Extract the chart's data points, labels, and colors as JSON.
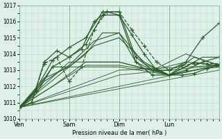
{
  "title": "",
  "xlabel": "Pression niveau de la mer( hPa )",
  "ylabel": "",
  "bg_color": "#dff0e8",
  "grid_color": "#b0d8c8",
  "line_color": "#2d5a2d",
  "ylim": [
    1010,
    1017
  ],
  "yticks": [
    1010,
    1011,
    1012,
    1013,
    1014,
    1015,
    1016,
    1017
  ],
  "xtick_labels": [
    "Ven",
    "Sam",
    "Dim",
    "Lun"
  ],
  "xtick_positions": [
    0,
    24,
    48,
    72
  ],
  "total_hours": 96,
  "figsize": [
    3.2,
    2.0
  ],
  "dpi": 100,
  "series": [
    {
      "x": [
        0,
        6,
        12,
        18,
        24,
        30,
        36,
        42,
        48,
        54,
        60,
        66,
        72,
        78,
        84,
        90,
        96
      ],
      "y": [
        1010.7,
        1011.0,
        1013.4,
        1013.8,
        1012.3,
        1013.2,
        1015.5,
        1016.6,
        1016.6,
        1015.5,
        1014.5,
        1013.5,
        1013.0,
        1013.3,
        1013.4,
        1013.4,
        1013.4
      ],
      "style": "--",
      "marker": "+",
      "lw": 0.9,
      "ms": 4
    },
    {
      "x": [
        0,
        6,
        12,
        18,
        24,
        30,
        36,
        42,
        48,
        54,
        60,
        66,
        72,
        78,
        84,
        90,
        96
      ],
      "y": [
        1010.7,
        1011.0,
        1013.5,
        1014.2,
        1013.8,
        1014.3,
        1016.0,
        1016.6,
        1016.4,
        1015.2,
        1014.0,
        1013.0,
        1012.7,
        1012.7,
        1012.8,
        1013.1,
        1013.2
      ],
      "style": "-",
      "marker": "+",
      "lw": 0.9,
      "ms": 4
    },
    {
      "x": [
        0,
        8,
        16,
        24,
        32,
        40,
        48,
        56,
        64,
        72,
        80,
        88,
        96
      ],
      "y": [
        1010.7,
        1011.5,
        1013.2,
        1013.2,
        1014.0,
        1015.3,
        1015.3,
        1013.5,
        1013.0,
        1012.7,
        1013.2,
        1013.8,
        1013.8
      ],
      "style": "-",
      "marker": null,
      "lw": 0.8,
      "ms": 0
    },
    {
      "x": [
        0,
        8,
        16,
        24,
        32,
        40,
        48,
        56,
        64,
        72,
        80,
        88,
        96
      ],
      "y": [
        1010.7,
        1011.7,
        1013.2,
        1013.8,
        1014.6,
        1016.4,
        1016.4,
        1013.5,
        1012.7,
        1012.7,
        1013.0,
        1013.5,
        1013.8
      ],
      "style": "-",
      "marker": "+",
      "lw": 0.9,
      "ms": 4
    },
    {
      "x": [
        0,
        8,
        16,
        24,
        32,
        40,
        48,
        56,
        64,
        72,
        80,
        88,
        96
      ],
      "y": [
        1010.7,
        1011.8,
        1013.6,
        1014.4,
        1015.0,
        1016.6,
        1016.6,
        1013.8,
        1013.0,
        1013.0,
        1013.5,
        1015.0,
        1015.9
      ],
      "style": "-",
      "marker": "+",
      "lw": 0.9,
      "ms": 4
    },
    {
      "x": [
        0,
        12,
        24,
        36,
        48,
        60,
        72,
        84,
        96
      ],
      "y": [
        1010.7,
        1012.5,
        1013.2,
        1014.5,
        1015.0,
        1013.5,
        1012.7,
        1013.5,
        1013.2
      ],
      "style": "-",
      "marker": null,
      "lw": 0.8,
      "ms": 0
    },
    {
      "x": [
        0,
        12,
        24,
        36,
        48,
        60,
        72,
        84,
        96
      ],
      "y": [
        1010.7,
        1012.3,
        1013.3,
        1014.8,
        1015.3,
        1013.4,
        1012.7,
        1013.8,
        1013.3
      ],
      "style": "-",
      "marker": null,
      "lw": 0.8,
      "ms": 0
    },
    {
      "x": [
        0,
        16,
        32,
        48,
        64,
        80,
        96
      ],
      "y": [
        1010.7,
        1012.0,
        1013.3,
        1013.3,
        1013.0,
        1013.5,
        1013.3
      ],
      "style": "-",
      "marker": null,
      "lw": 0.7,
      "ms": 0
    },
    {
      "x": [
        0,
        16,
        32,
        48,
        64,
        80,
        96
      ],
      "y": [
        1010.7,
        1012.0,
        1013.5,
        1013.5,
        1013.0,
        1014.0,
        1013.3
      ],
      "style": "-",
      "marker": null,
      "lw": 0.7,
      "ms": 0
    },
    {
      "x": [
        0,
        24,
        48,
        72,
        96
      ],
      "y": [
        1010.7,
        1013.2,
        1013.2,
        1012.7,
        1013.3
      ],
      "style": "-",
      "marker": null,
      "lw": 0.7,
      "ms": 0
    },
    {
      "x": [
        0,
        24,
        48,
        72,
        96
      ],
      "y": [
        1010.7,
        1013.5,
        1013.5,
        1012.7,
        1013.3
      ],
      "style": "-",
      "marker": null,
      "lw": 0.7,
      "ms": 0
    },
    {
      "x": [
        0,
        48,
        96
      ],
      "y": [
        1010.7,
        1013.0,
        1013.3
      ],
      "style": "-",
      "marker": null,
      "lw": 0.6,
      "ms": 0
    },
    {
      "x": [
        0,
        48,
        96
      ],
      "y": [
        1010.7,
        1012.7,
        1013.3
      ],
      "style": "-",
      "marker": null,
      "lw": 0.6,
      "ms": 0
    },
    {
      "x": [
        0,
        96
      ],
      "y": [
        1010.7,
        1013.3
      ],
      "style": "-",
      "marker": null,
      "lw": 0.6,
      "ms": 0
    },
    {
      "x": [
        0,
        96
      ],
      "y": [
        1010.7,
        1013.0
      ],
      "style": "-",
      "marker": null,
      "lw": 0.6,
      "ms": 0
    }
  ]
}
